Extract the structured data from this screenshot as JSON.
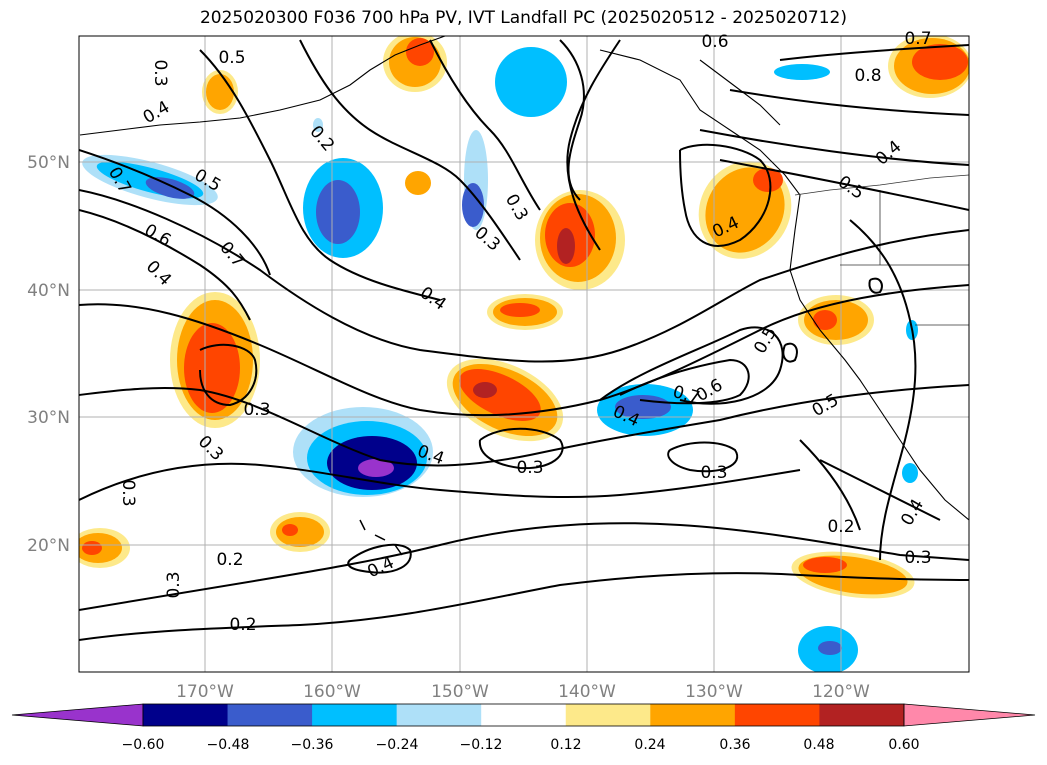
{
  "title": "2025020300 F036 700 hPa PV, IVT Landfall PC (2025020512 - 2025020712)",
  "map": {
    "lat_labels": [
      "50°N",
      "40°N",
      "30°N",
      "20°N"
    ],
    "lon_labels": [
      "170°W",
      "160°W",
      "150°W",
      "140°W",
      "130°W",
      "120°W"
    ],
    "contour_labels": [
      "0.5",
      "0.3",
      "0.4",
      "0.2",
      "0.5",
      "0.7",
      "0.6",
      "0.4",
      "0.7",
      "0.3",
      "0.3",
      "0.3",
      "0.4",
      "0.3",
      "0.3",
      "0.2",
      "0.3",
      "0.2",
      "0.4",
      "0.4",
      "0.3",
      "0.7",
      "0.6",
      "0.4",
      "0.5",
      "0.3",
      "0.4",
      "0.5",
      "0.5",
      "0.2",
      "0.3",
      "0.4",
      "0.6",
      "0.8",
      "0.7",
      "0.4"
    ]
  },
  "colorbar": {
    "ticks": [
      "−0.60",
      "−0.48",
      "−0.36",
      "−0.24",
      "−0.12",
      "0.12",
      "0.24",
      "0.36",
      "0.48",
      "0.60"
    ],
    "colors": [
      "#9933cc",
      "#00008b",
      "#3a5ccc",
      "#00bfff",
      "#aee0f8",
      "#ffffff",
      "#fde98a",
      "#ffa500",
      "#ff4500",
      "#b22222",
      "#ff88aa"
    ]
  }
}
